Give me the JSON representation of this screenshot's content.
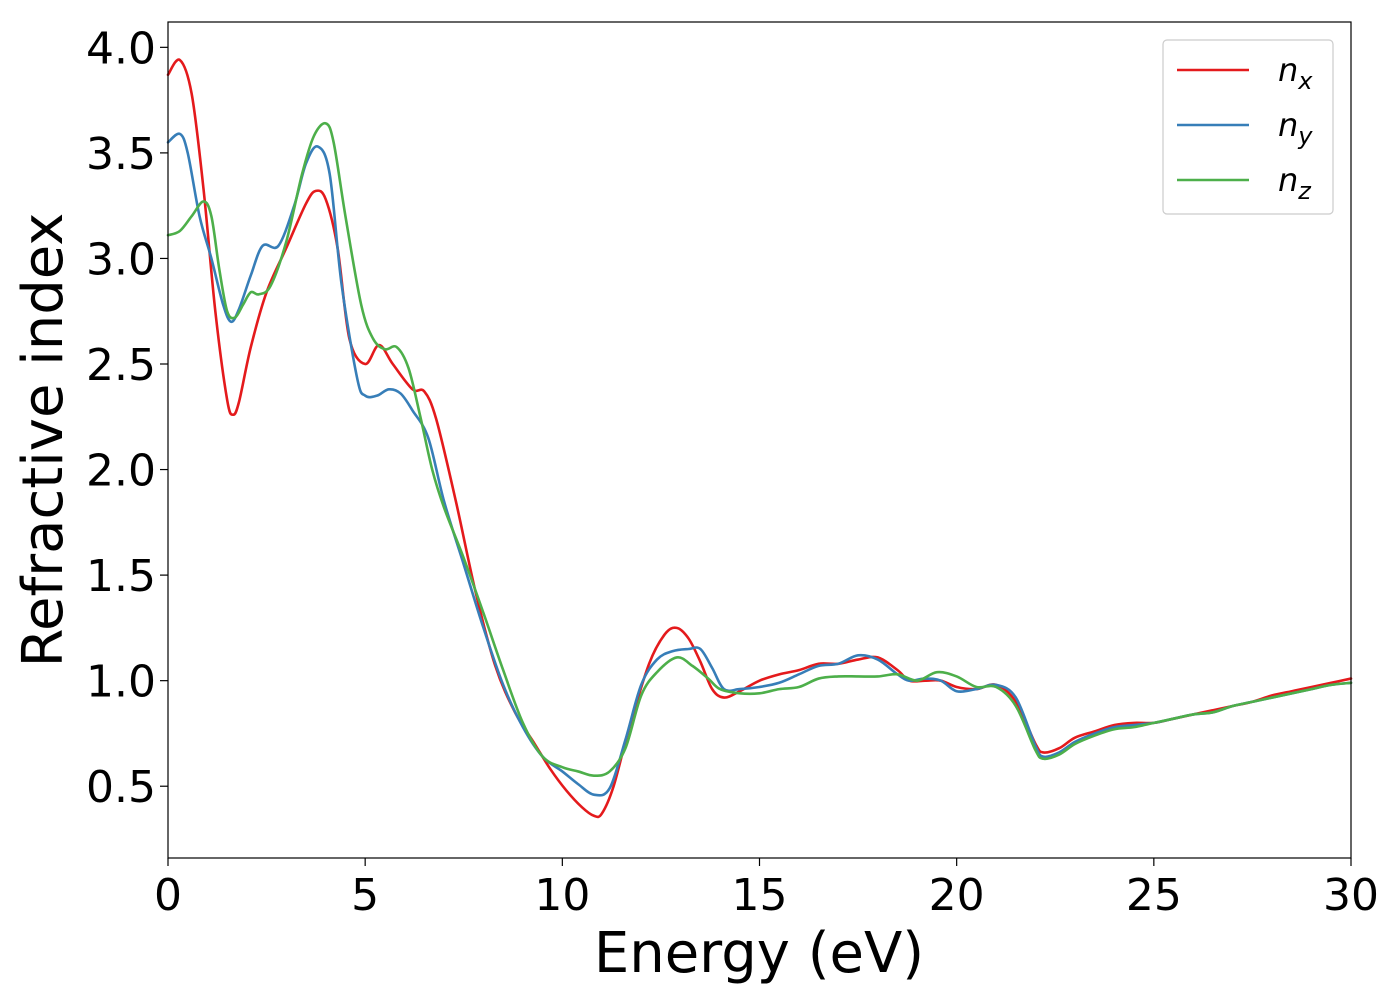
{
  "chart_data": {
    "type": "line",
    "title": "",
    "xlabel": "Energy (eV)",
    "ylabel": "Refractive index",
    "xlim": [
      0,
      30
    ],
    "ylim": [
      0.16,
      4.12
    ],
    "xticks": [
      0,
      5,
      10,
      15,
      20,
      25,
      30
    ],
    "xtick_labels": [
      "0",
      "5",
      "10",
      "15",
      "20",
      "25",
      "30"
    ],
    "yticks": [
      0.5,
      1.0,
      1.5,
      2.0,
      2.5,
      3.0,
      3.5,
      4.0
    ],
    "ytick_labels": [
      "0.5",
      "1.0",
      "1.5",
      "2.0",
      "2.5",
      "3.0",
      "3.5",
      "4.0"
    ],
    "grid": false,
    "legend_position": "top-right",
    "series": [
      {
        "name": "n",
        "subscript": "x",
        "color": "#e41a1c",
        "x": [
          0,
          0.3,
          0.6,
          0.9,
          1.2,
          1.5,
          1.65,
          1.8,
          2.1,
          2.5,
          3.0,
          3.5,
          3.75,
          4.0,
          4.3,
          4.6,
          5.0,
          5.35,
          5.7,
          6.2,
          6.5,
          6.8,
          7.3,
          7.8,
          8.3,
          8.8,
          9.3,
          9.7,
          10.1,
          10.5,
          10.8,
          11.0,
          11.3,
          11.7,
          12.2,
          12.6,
          12.9,
          13.2,
          13.5,
          13.8,
          14.1,
          14.5,
          15.0,
          15.5,
          16.0,
          16.5,
          17.0,
          17.5,
          18.0,
          18.5,
          18.8,
          19.2,
          19.6,
          20.0,
          20.5,
          21.0,
          21.5,
          22.0,
          22.2,
          22.6,
          23.0,
          23.5,
          24.0,
          24.5,
          25.0,
          25.5,
          26.0,
          26.5,
          27.0,
          27.5,
          28.0,
          28.5,
          29.0,
          29.5,
          30.0
        ],
        "y": [
          3.87,
          3.94,
          3.78,
          3.33,
          2.75,
          2.33,
          2.26,
          2.32,
          2.58,
          2.84,
          3.05,
          3.26,
          3.32,
          3.28,
          3.05,
          2.62,
          2.5,
          2.59,
          2.5,
          2.38,
          2.37,
          2.24,
          1.85,
          1.42,
          1.07,
          0.85,
          0.7,
          0.58,
          0.48,
          0.4,
          0.36,
          0.37,
          0.5,
          0.78,
          1.08,
          1.22,
          1.25,
          1.2,
          1.09,
          0.96,
          0.92,
          0.95,
          1.0,
          1.03,
          1.05,
          1.08,
          1.08,
          1.1,
          1.11,
          1.05,
          1.0,
          1.0,
          1.0,
          0.97,
          0.96,
          0.98,
          0.9,
          0.7,
          0.66,
          0.68,
          0.73,
          0.76,
          0.79,
          0.8,
          0.8,
          0.82,
          0.84,
          0.86,
          0.88,
          0.9,
          0.93,
          0.95,
          0.97,
          0.99,
          1.01
        ]
      },
      {
        "name": "n",
        "subscript": "y",
        "color": "#377eb8",
        "x": [
          0,
          0.3,
          0.5,
          0.8,
          1.1,
          1.4,
          1.6,
          1.8,
          2.1,
          2.4,
          2.8,
          3.2,
          3.5,
          3.8,
          4.1,
          4.4,
          4.8,
          5.0,
          5.3,
          5.6,
          5.9,
          6.2,
          6.6,
          7.0,
          7.5,
          8.0,
          8.5,
          9.0,
          9.5,
          10.0,
          10.4,
          10.8,
          11.2,
          11.6,
          12.0,
          12.4,
          12.8,
          13.2,
          13.5,
          13.8,
          14.1,
          14.5,
          15.0,
          15.5,
          16.0,
          16.5,
          17.0,
          17.5,
          18.0,
          18.5,
          18.8,
          19.2,
          19.6,
          20.0,
          20.5,
          21.0,
          21.5,
          22.0,
          22.2,
          22.6,
          23.0,
          23.5,
          24.0,
          24.5,
          25.0,
          25.5,
          26.0,
          26.5,
          27.0,
          27.5,
          28.0,
          28.5,
          29.0,
          29.5,
          30.0
        ],
        "y": [
          3.55,
          3.59,
          3.5,
          3.2,
          3.0,
          2.78,
          2.7,
          2.76,
          2.92,
          3.06,
          3.06,
          3.25,
          3.45,
          3.53,
          3.4,
          2.88,
          2.43,
          2.35,
          2.35,
          2.38,
          2.36,
          2.28,
          2.15,
          1.85,
          1.55,
          1.25,
          0.98,
          0.78,
          0.64,
          0.57,
          0.51,
          0.46,
          0.49,
          0.72,
          0.98,
          1.1,
          1.14,
          1.15,
          1.15,
          1.06,
          0.96,
          0.96,
          0.97,
          0.99,
          1.03,
          1.07,
          1.08,
          1.12,
          1.1,
          1.03,
          1.0,
          1.01,
          1.0,
          0.95,
          0.96,
          0.98,
          0.92,
          0.69,
          0.64,
          0.66,
          0.71,
          0.75,
          0.78,
          0.79,
          0.8,
          0.82,
          0.84,
          0.85,
          0.88,
          0.9,
          0.92,
          0.94,
          0.96,
          0.98,
          0.99
        ]
      },
      {
        "name": "n",
        "subscript": "z",
        "color": "#4daf4a",
        "x": [
          0,
          0.3,
          0.6,
          0.9,
          1.1,
          1.3,
          1.5,
          1.7,
          1.9,
          2.1,
          2.3,
          2.6,
          3.0,
          3.4,
          3.7,
          4.0,
          4.2,
          4.5,
          4.9,
          5.2,
          5.5,
          5.8,
          6.1,
          6.4,
          6.7,
          7.0,
          7.5,
          8.0,
          8.5,
          9.0,
          9.5,
          10.0,
          10.4,
          10.8,
          11.2,
          11.6,
          12.0,
          12.4,
          12.9,
          13.3,
          13.7,
          14.0,
          14.5,
          15.0,
          15.5,
          16.0,
          16.5,
          17.0,
          17.5,
          18.0,
          18.5,
          19.0,
          19.5,
          20.0,
          20.5,
          21.0,
          21.5,
          22.0,
          22.2,
          22.6,
          23.0,
          23.5,
          24.0,
          24.5,
          25.0,
          25.5,
          26.0,
          26.5,
          27.0,
          27.5,
          28.0,
          28.5,
          29.0,
          29.5,
          30.0
        ],
        "y": [
          3.11,
          3.13,
          3.2,
          3.27,
          3.2,
          2.95,
          2.75,
          2.72,
          2.78,
          2.84,
          2.83,
          2.87,
          3.08,
          3.4,
          3.58,
          3.64,
          3.55,
          3.2,
          2.78,
          2.62,
          2.57,
          2.58,
          2.48,
          2.25,
          2.0,
          1.82,
          1.58,
          1.32,
          1.05,
          0.8,
          0.64,
          0.59,
          0.57,
          0.55,
          0.57,
          0.68,
          0.93,
          1.04,
          1.11,
          1.07,
          1.01,
          0.96,
          0.94,
          0.94,
          0.96,
          0.97,
          1.01,
          1.02,
          1.02,
          1.02,
          1.03,
          1.0,
          1.04,
          1.02,
          0.97,
          0.97,
          0.88,
          0.67,
          0.63,
          0.65,
          0.7,
          0.74,
          0.77,
          0.78,
          0.8,
          0.82,
          0.84,
          0.85,
          0.88,
          0.9,
          0.92,
          0.94,
          0.96,
          0.98,
          0.99
        ]
      }
    ]
  }
}
